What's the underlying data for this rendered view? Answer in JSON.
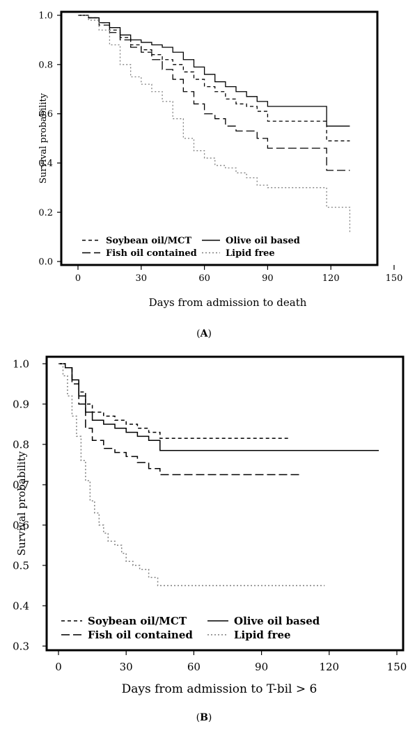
{
  "chart_data": [
    {
      "type": "line",
      "panel_label": "A",
      "xlabel": "Days from admission to death",
      "ylabel": "Survival probability",
      "xlim": [
        0,
        150
      ],
      "ylim": [
        0.0,
        1.0
      ],
      "x_ticks": [
        "0",
        "30",
        "60",
        "90",
        "120",
        "150"
      ],
      "y_ticks": [
        "0.0",
        "0.2",
        "0.4",
        "0.6",
        "0.8",
        "1.0"
      ],
      "step": true,
      "grid": false,
      "legend_position": "bottom-left",
      "series": [
        {
          "name": "Soybean oil/MCT",
          "color": "#000000",
          "dash": "dashed",
          "x": [
            0,
            5,
            10,
            15,
            20,
            25,
            30,
            35,
            40,
            45,
            50,
            55,
            60,
            65,
            70,
            75,
            80,
            85,
            90,
            100,
            110,
            118,
            129
          ],
          "y": [
            1.0,
            0.99,
            0.97,
            0.94,
            0.91,
            0.88,
            0.86,
            0.84,
            0.82,
            0.8,
            0.77,
            0.74,
            0.71,
            0.69,
            0.66,
            0.64,
            0.63,
            0.61,
            0.57,
            0.57,
            0.57,
            0.49,
            0.49
          ]
        },
        {
          "name": "Olive oil based",
          "color": "#000000",
          "dash": "solid",
          "x": [
            0,
            5,
            10,
            15,
            20,
            25,
            30,
            35,
            40,
            45,
            50,
            55,
            60,
            65,
            70,
            75,
            80,
            85,
            90,
            100,
            110,
            118,
            129
          ],
          "y": [
            1.0,
            0.99,
            0.97,
            0.95,
            0.92,
            0.9,
            0.89,
            0.88,
            0.87,
            0.85,
            0.82,
            0.79,
            0.76,
            0.73,
            0.71,
            0.69,
            0.67,
            0.65,
            0.63,
            0.63,
            0.63,
            0.55,
            0.55
          ]
        },
        {
          "name": "Fish oil contained",
          "color": "#000000",
          "dash": "longdash",
          "x": [
            0,
            5,
            10,
            15,
            20,
            25,
            30,
            35,
            40,
            45,
            50,
            55,
            60,
            65,
            70,
            75,
            80,
            85,
            90,
            100,
            110,
            118,
            129
          ],
          "y": [
            1.0,
            0.99,
            0.96,
            0.93,
            0.9,
            0.87,
            0.85,
            0.82,
            0.78,
            0.74,
            0.69,
            0.64,
            0.6,
            0.58,
            0.55,
            0.53,
            0.53,
            0.5,
            0.46,
            0.46,
            0.46,
            0.37,
            0.37
          ]
        },
        {
          "name": "Lipid free",
          "color": "#7f7f7f",
          "dash": "dotted",
          "x": [
            0,
            5,
            10,
            15,
            20,
            25,
            30,
            35,
            40,
            45,
            50,
            55,
            60,
            65,
            70,
            75,
            80,
            85,
            90,
            100,
            110,
            118,
            129
          ],
          "y": [
            1.0,
            0.98,
            0.94,
            0.88,
            0.8,
            0.75,
            0.72,
            0.69,
            0.65,
            0.58,
            0.5,
            0.45,
            0.42,
            0.39,
            0.38,
            0.36,
            0.34,
            0.31,
            0.3,
            0.3,
            0.3,
            0.22,
            0.12
          ]
        }
      ]
    },
    {
      "type": "line",
      "panel_label": "B",
      "xlabel": "Days from admission to T-bil > 6",
      "ylabel": "Survival probability",
      "xlim": [
        0,
        150
      ],
      "ylim": [
        0.3,
        1.0
      ],
      "x_ticks": [
        "0",
        "30",
        "60",
        "90",
        "120",
        "150"
      ],
      "y_ticks": [
        "0.3",
        "0.4",
        "0.5",
        "0.6",
        "0.7",
        "0.8",
        "0.9",
        "1.0"
      ],
      "step": true,
      "grid": false,
      "legend_position": "bottom-left",
      "series": [
        {
          "name": "Soybean oil/MCT",
          "color": "#000000",
          "dash": "dashed",
          "x": [
            0,
            3,
            6,
            9,
            12,
            15,
            20,
            25,
            30,
            35,
            40,
            45,
            60,
            80,
            102
          ],
          "y": [
            1.0,
            0.99,
            0.96,
            0.93,
            0.9,
            0.88,
            0.87,
            0.86,
            0.85,
            0.84,
            0.83,
            0.815,
            0.815,
            0.815,
            0.815
          ]
        },
        {
          "name": "Olive oil based",
          "color": "#000000",
          "dash": "solid",
          "x": [
            0,
            3,
            6,
            9,
            12,
            15,
            20,
            25,
            30,
            35,
            40,
            45,
            60,
            100,
            142
          ],
          "y": [
            1.0,
            0.99,
            0.96,
            0.92,
            0.88,
            0.86,
            0.85,
            0.84,
            0.83,
            0.82,
            0.81,
            0.785,
            0.785,
            0.785,
            0.785
          ]
        },
        {
          "name": "Fish oil contained",
          "color": "#000000",
          "dash": "longdash",
          "x": [
            0,
            3,
            6,
            9,
            12,
            15,
            20,
            25,
            30,
            35,
            40,
            45,
            60,
            80,
            107
          ],
          "y": [
            1.0,
            0.99,
            0.95,
            0.9,
            0.84,
            0.81,
            0.79,
            0.78,
            0.77,
            0.755,
            0.74,
            0.725,
            0.725,
            0.725,
            0.725
          ]
        },
        {
          "name": "Lipid free",
          "color": "#7f7f7f",
          "dash": "dotted",
          "x": [
            0,
            2,
            4,
            6,
            8,
            10,
            12,
            14,
            16,
            18,
            20,
            22,
            25,
            28,
            30,
            33,
            36,
            40,
            44,
            60,
            80,
            118
          ],
          "y": [
            1.0,
            0.97,
            0.92,
            0.87,
            0.82,
            0.76,
            0.71,
            0.66,
            0.63,
            0.6,
            0.58,
            0.56,
            0.55,
            0.53,
            0.51,
            0.5,
            0.49,
            0.47,
            0.45,
            0.45,
            0.45,
            0.45
          ]
        }
      ]
    }
  ]
}
